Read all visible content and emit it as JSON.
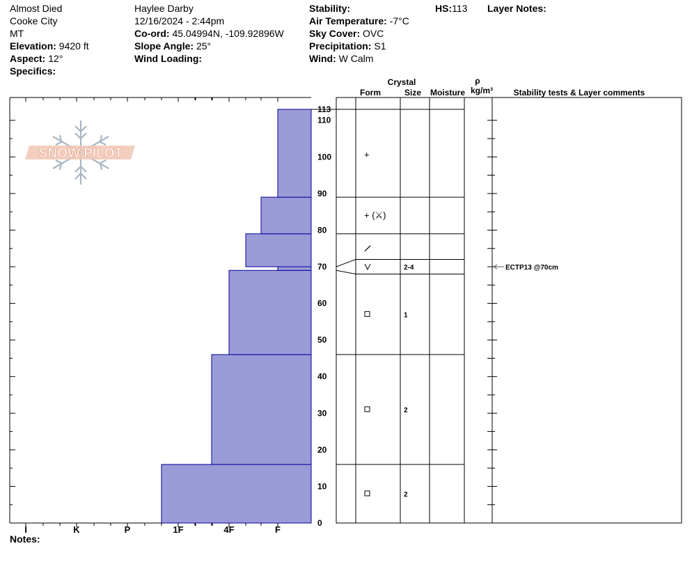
{
  "header": {
    "location": "Almost Died",
    "area": "Cooke City",
    "state": "MT",
    "elevation": {
      "label": "Elevation:",
      "value": "9420 ft"
    },
    "aspect": {
      "label": "Aspect:",
      "value": "12°"
    },
    "specifics": {
      "label": "Specifics:",
      "value": ""
    },
    "observer": "Haylee Darby",
    "datetime": "12/16/2024 - 2:44pm",
    "coord": {
      "label": "Co-ord:",
      "value": "45.04994N, -109.92896W"
    },
    "slope_angle": {
      "label": "Slope Angle:",
      "value": "25°"
    },
    "wind_loading": {
      "label": "Wind Loading:",
      "value": ""
    },
    "stability": {
      "label": "Stability:",
      "value": ""
    },
    "air_temp": {
      "label": "Air Temperature:",
      "value": "-7°C"
    },
    "sky_cover": {
      "label": "Sky Cover:",
      "value": "OVC"
    },
    "precipitation": {
      "label": "Precipitation:",
      "value": "S1"
    },
    "wind": {
      "label": "Wind:",
      "value": " W Calm"
    },
    "hs": {
      "label": "HS:",
      "value": "113"
    },
    "layer_notes": {
      "label": "Layer Notes:",
      "value": ""
    }
  },
  "logo_text": "SNOW PILOT",
  "columns": {
    "crystal": "Crystal",
    "form": "Form",
    "size": "Size",
    "moisture": "Moisture",
    "rho": "ρ",
    "density_unit": "kg/m³",
    "stability_tests": "Stability tests & Layer comments"
  },
  "notes": {
    "label": "Notes:",
    "value": ""
  },
  "colors": {
    "bar_fill": "#9b9bd7",
    "bar_stroke": "#00009c",
    "grid": "#000000",
    "logo": "#e9a58a"
  },
  "chart_data": {
    "type": "bar",
    "orientation": "horizontal",
    "title": "",
    "hardness_scale": [
      "I",
      "K",
      "P",
      "1F",
      "4F",
      "F"
    ],
    "y_ticks": [
      0,
      10,
      20,
      30,
      40,
      50,
      60,
      70,
      80,
      90,
      100,
      110
    ],
    "ylim": [
      0,
      113
    ],
    "hs_label": "113",
    "hardness_layers": [
      {
        "bottom": 0,
        "top": 16,
        "hardness": "1F-"
      },
      {
        "bottom": 16,
        "top": 46,
        "hardness": "4F-"
      },
      {
        "bottom": 46,
        "top": 69,
        "hardness": "4F"
      },
      {
        "bottom": 69,
        "top": 70,
        "hardness": "F"
      },
      {
        "bottom": 70,
        "top": 79,
        "hardness": "4F+"
      },
      {
        "bottom": 79,
        "top": 89,
        "hardness": "F-"
      },
      {
        "bottom": 89,
        "top": 113,
        "hardness": "F"
      }
    ],
    "layer_boundaries": [
      113,
      89,
      79,
      72,
      68,
      46,
      16
    ],
    "crystal_layers": [
      {
        "mid": 100.5,
        "form": "+",
        "size": ""
      },
      {
        "mid": 84,
        "form": "+ (⚔)",
        "size": ""
      },
      {
        "mid": 75,
        "form": "/",
        "size": ""
      },
      {
        "mid": 70,
        "form": "V",
        "size": "2-4"
      },
      {
        "mid": 57,
        "form": "□",
        "size": "1"
      },
      {
        "mid": 31,
        "form": "□",
        "size": "2"
      },
      {
        "mid": 8,
        "form": "□",
        "size": "2"
      }
    ],
    "stability_tests": [
      {
        "depth": 70,
        "label": "ECTP13 @70cm"
      }
    ]
  }
}
